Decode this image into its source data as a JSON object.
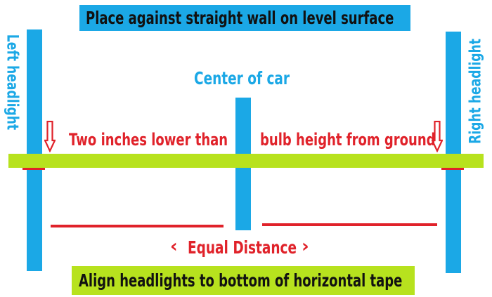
{
  "header": {
    "text": "Place against straight wall on level surface"
  },
  "footer": {
    "text": "Align headlights to bottom of horizontal tape"
  },
  "labels": {
    "left_headlight": "Left headlight",
    "right_headlight": "Right headlight",
    "center_of_car": "Center of car",
    "instruction_left": "Two inches lower than",
    "instruction_right": "bulb height from ground",
    "equal_distance": "Equal Distance",
    "arrow_left_glyph": "‹",
    "arrow_right_glyph": "›"
  },
  "colors": {
    "blue": "#1ba8e6",
    "tape_green": "#b7e21e",
    "red": "#e0222a",
    "text_dark": "#111111"
  },
  "icons": {
    "down_arrow": "down-arrow-icon"
  }
}
